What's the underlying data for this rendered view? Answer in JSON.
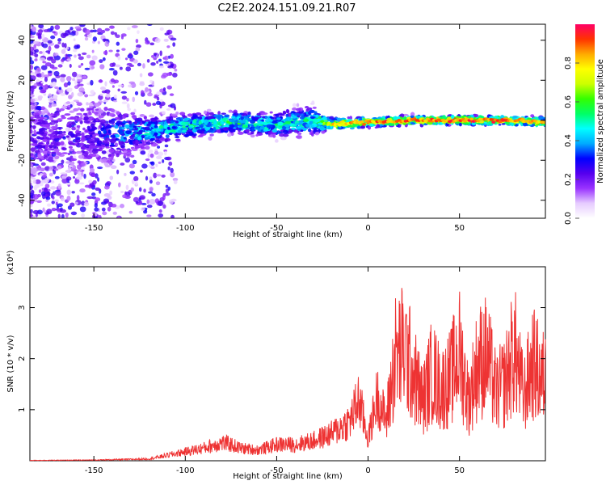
{
  "title": "C2E2.2024.151.09.21.R07",
  "colors": {
    "snr_line": "#ee3333",
    "axis": "#000000"
  },
  "chart_data": [
    {
      "type": "heatmap",
      "name": "spectrogram",
      "xlabel": "Height of straight line (km)",
      "ylabel": "Frequency (Hz)",
      "xlim": [
        -185,
        97
      ],
      "ylim": [
        -49,
        48
      ],
      "xticks": [
        -150,
        -100,
        -50,
        0,
        50
      ],
      "yticks": [
        -40,
        -20,
        0,
        20,
        40
      ],
      "colorbar": {
        "label": "Normalized spectral amplitude",
        "range": [
          0.0,
          1.0
        ],
        "ticks": [
          0.0,
          0.2,
          0.4,
          0.6,
          0.8
        ],
        "colors": [
          "#ffffff",
          "#e6ccff",
          "#9933ff",
          "#5500ee",
          "#0000ff",
          "#00aaff",
          "#00ffff",
          "#00ff66",
          "#33ff00",
          "#ccff00",
          "#ffff00",
          "#ffaa00",
          "#ff3300",
          "#ff0066"
        ]
      },
      "ridge": [
        {
          "x": -185,
          "f": -8,
          "spread": 22,
          "amp": 0.25
        },
        {
          "x": -150,
          "f": -7,
          "spread": 20,
          "amp": 0.28
        },
        {
          "x": -125,
          "f": -6,
          "spread": 8,
          "amp": 0.5
        },
        {
          "x": -100,
          "f": -3,
          "spread": 6,
          "amp": 0.55
        },
        {
          "x": -75,
          "f": -1,
          "spread": 5,
          "amp": 0.6
        },
        {
          "x": -50,
          "f": -2,
          "spread": 6,
          "amp": 0.55
        },
        {
          "x": -30,
          "f": 0,
          "spread": 7,
          "amp": 0.55
        },
        {
          "x": -20,
          "f": -2,
          "spread": 3,
          "amp": 0.8
        },
        {
          "x": 0,
          "f": -1,
          "spread": 2,
          "amp": 0.9
        },
        {
          "x": 25,
          "f": 0,
          "spread": 2,
          "amp": 0.92
        },
        {
          "x": 50,
          "f": 0,
          "spread": 2,
          "amp": 0.95
        },
        {
          "x": 75,
          "f": 0,
          "spread": 2,
          "amp": 0.93
        },
        {
          "x": 97,
          "f": -1,
          "spread": 2,
          "amp": 0.85
        }
      ]
    },
    {
      "type": "line",
      "name": "snr",
      "xlabel": "Height of straight line (km)",
      "ylabel": "SNR (10 * v/v)",
      "scale_label": "(x10⁴)",
      "xlim": [
        -185,
        97
      ],
      "ylim": [
        0,
        3.8
      ],
      "xticks": [
        -150,
        -100,
        -50,
        0,
        50
      ],
      "yticks": [
        1,
        2,
        3
      ],
      "x": [
        -185,
        -150,
        -120,
        -110,
        -100,
        -90,
        -80,
        -75,
        -70,
        -60,
        -50,
        -40,
        -30,
        -20,
        -10,
        -5,
        0,
        5,
        10,
        15,
        20,
        25,
        30,
        35,
        40,
        45,
        50,
        55,
        60,
        65,
        70,
        75,
        80,
        85,
        90,
        95
      ],
      "y": [
        0.01,
        0.02,
        0.05,
        0.15,
        0.25,
        0.35,
        0.5,
        0.45,
        0.35,
        0.3,
        0.45,
        0.45,
        0.55,
        0.75,
        1.1,
        1.7,
        0.6,
        1.8,
        1.1,
        2.8,
        3.0,
        2.3,
        1.6,
        2.4,
        1.9,
        2.2,
        2.9,
        1.6,
        2.6,
        2.8,
        1.8,
        2.1,
        3.0,
        1.7,
        2.6,
        2.2
      ]
    }
  ]
}
